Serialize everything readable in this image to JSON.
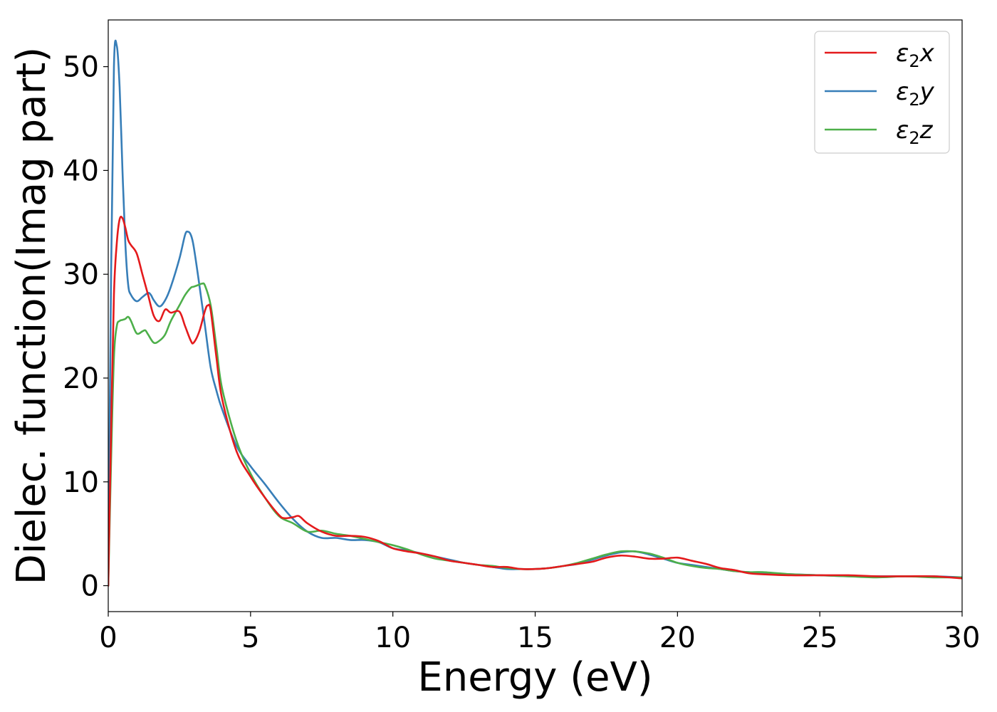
{
  "chart_data": {
    "type": "line",
    "title": "",
    "xlabel": "Energy (eV)",
    "ylabel": "Dielec. function(Imag part)",
    "xlim": [
      0,
      30
    ],
    "ylim": [
      -2.5,
      54.5
    ],
    "xticks": [
      0,
      5,
      10,
      15,
      20,
      25,
      30
    ],
    "yticks": [
      0,
      10,
      20,
      30,
      40,
      50
    ],
    "grid": false,
    "legend_position": "top-right",
    "series": [
      {
        "name_base": "ε",
        "name_sub": "2",
        "name_var": "x",
        "color": "#e41a1c",
        "x": [
          0,
          0.1,
          0.2,
          0.3,
          0.4,
          0.5,
          0.6,
          0.7,
          0.8,
          1.0,
          1.2,
          1.4,
          1.6,
          1.8,
          2.0,
          2.2,
          2.5,
          2.7,
          2.9,
          3.0,
          3.2,
          3.4,
          3.5,
          3.6,
          3.8,
          4.0,
          4.5,
          5.0,
          5.5,
          6.0,
          6.2,
          6.5,
          6.7,
          7.0,
          7.5,
          8.0,
          8.5,
          9.0,
          9.5,
          10,
          10.5,
          11,
          11.5,
          12,
          12.5,
          13,
          13.5,
          14,
          14.5,
          15,
          15.5,
          16,
          16.5,
          17,
          17.5,
          18,
          18.5,
          19,
          19.5,
          20,
          20.5,
          21,
          21.5,
          22,
          22.5,
          23,
          24,
          25,
          26,
          27,
          28,
          29,
          30
        ],
        "y": [
          0,
          15,
          28,
          33,
          35.3,
          35.4,
          34.5,
          33.3,
          32.8,
          32,
          30,
          28,
          26,
          25.5,
          26.6,
          26.3,
          26.4,
          25,
          23.6,
          23.4,
          24.5,
          26.5,
          27,
          26.5,
          22,
          18,
          13,
          10.5,
          8.5,
          6.8,
          6.5,
          6.6,
          6.7,
          6,
          5.2,
          4.8,
          4.8,
          4.7,
          4.3,
          3.6,
          3.3,
          3.1,
          2.8,
          2.4,
          2.2,
          2.0,
          1.8,
          1.8,
          1.6,
          1.6,
          1.7,
          1.9,
          2.1,
          2.3,
          2.7,
          2.9,
          2.8,
          2.6,
          2.6,
          2.7,
          2.4,
          2.1,
          1.7,
          1.5,
          1.2,
          1.1,
          1.0,
          1.0,
          1.0,
          0.9,
          0.9,
          0.9,
          0.7
        ]
      },
      {
        "name_base": "ε",
        "name_sub": "2",
        "name_var": "y",
        "color": "#377eb8",
        "x": [
          0,
          0.1,
          0.2,
          0.3,
          0.4,
          0.5,
          0.6,
          0.7,
          0.8,
          1.0,
          1.2,
          1.4,
          1.5,
          1.6,
          1.8,
          2.0,
          2.2,
          2.5,
          2.7,
          2.8,
          2.9,
          3.0,
          3.2,
          3.4,
          3.6,
          3.8,
          4.0,
          4.5,
          5.0,
          5.5,
          6.0,
          6.5,
          7.0,
          7.5,
          8.0,
          8.5,
          9.0,
          9.5,
          10,
          10.5,
          11,
          11.5,
          12,
          12.5,
          13,
          13.5,
          14,
          14.5,
          15,
          15.5,
          16,
          16.5,
          17,
          17.5,
          18,
          18.5,
          19,
          19.5,
          20,
          20.5,
          21,
          21.5,
          22,
          22.5,
          23,
          24,
          25,
          26,
          27,
          28,
          29,
          30
        ],
        "y": [
          0,
          30,
          50,
          52,
          48,
          40,
          33,
          29,
          28,
          27.4,
          27.8,
          28.2,
          28,
          27.5,
          26.9,
          27.5,
          28.8,
          31.5,
          33.8,
          34.1,
          33.8,
          32.7,
          29,
          25,
          21,
          18.8,
          17,
          13.5,
          11.5,
          9.8,
          8,
          6.4,
          5.2,
          4.6,
          4.6,
          4.4,
          4.4,
          4.2,
          3.6,
          3.4,
          3.1,
          2.8,
          2.5,
          2.2,
          2.0,
          1.8,
          1.6,
          1.6,
          1.6,
          1.7,
          1.9,
          2.1,
          2.5,
          2.9,
          3.2,
          3.3,
          3.0,
          2.6,
          2.2,
          2.0,
          1.8,
          1.6,
          1.4,
          1.3,
          1.2,
          1.1,
          1.0,
          0.9,
          0.9,
          0.9,
          0.9,
          0.8
        ]
      },
      {
        "name_base": "ε",
        "name_sub": "2",
        "name_var": "z",
        "color": "#4daf4a",
        "x": [
          0,
          0.1,
          0.2,
          0.3,
          0.4,
          0.5,
          0.6,
          0.7,
          0.8,
          1.0,
          1.2,
          1.3,
          1.4,
          1.6,
          1.8,
          2.0,
          2.2,
          2.5,
          2.7,
          2.9,
          3.0,
          3.2,
          3.3,
          3.4,
          3.6,
          3.8,
          4.0,
          4.5,
          5.0,
          5.5,
          6.0,
          6.5,
          7.0,
          7.5,
          8.0,
          8.5,
          9.0,
          9.5,
          10,
          10.5,
          11,
          11.5,
          12,
          12.5,
          13,
          13.5,
          14,
          14.5,
          15,
          15.5,
          16,
          16.5,
          17,
          17.5,
          18,
          18.5,
          19,
          19.5,
          20,
          20.5,
          21,
          21.5,
          22,
          22.5,
          23,
          24,
          25,
          26,
          27,
          28,
          29,
          30
        ],
        "y": [
          0,
          12,
          22,
          25,
          25.5,
          25.6,
          25.7,
          25.9,
          25.5,
          24.3,
          24.5,
          24.6,
          24.2,
          23.4,
          23.6,
          24.2,
          25.5,
          27,
          28,
          28.7,
          28.8,
          29,
          29.1,
          28.9,
          27,
          23,
          19,
          14,
          10.8,
          8.5,
          6.7,
          6.0,
          5.2,
          5.3,
          5.0,
          4.8,
          4.5,
          4.2,
          3.9,
          3.5,
          3.0,
          2.6,
          2.4,
          2.2,
          2.0,
          1.9,
          1.7,
          1.6,
          1.6,
          1.7,
          1.9,
          2.2,
          2.6,
          3.0,
          3.3,
          3.3,
          3.1,
          2.7,
          2.2,
          1.9,
          1.7,
          1.6,
          1.4,
          1.3,
          1.3,
          1.1,
          1.0,
          0.9,
          0.8,
          0.9,
          0.8,
          0.8
        ]
      }
    ]
  }
}
